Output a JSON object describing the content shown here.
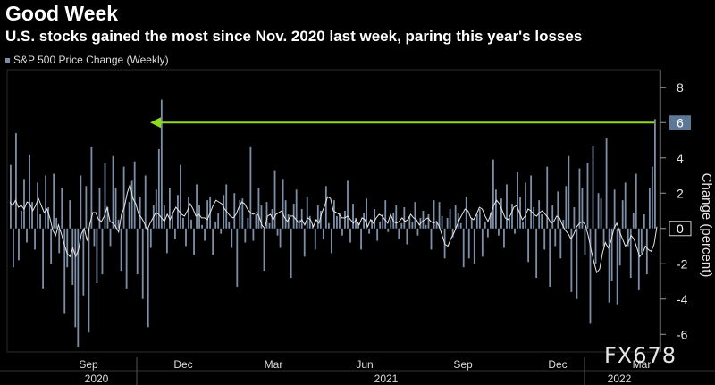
{
  "title": "Good Week",
  "subtitle": "U.S. stocks gained the most since Nov. 2020 last week, paring this year's losses",
  "watermark": "FX678",
  "chart_data": {
    "type": "bar",
    "legend": "S&P 500 Price Change (Weekly)",
    "ylabel": "Change (percent)",
    "ylim": [
      -7,
      9
    ],
    "yticks": [
      -6,
      -4,
      -2,
      0,
      2,
      4,
      6,
      8
    ],
    "last_value_label": "6",
    "zero_label": "0",
    "month_labels": [
      "Sep",
      "Dec",
      "Mar",
      "Jun",
      "Sep",
      "Dec",
      "Mar"
    ],
    "year_labels": [
      "2020",
      "2021",
      "2022"
    ],
    "colors": {
      "bar": "#7d8fa8",
      "avg_line": "#e8e8e8",
      "arrow": "#8fdc1e",
      "grid": "#2c2c2c"
    },
    "series": [
      {
        "name": "S&P 500 Price Change (Weekly)",
        "values": [
          3.6,
          -2.2,
          5.4,
          -1.8,
          1.0,
          2.8,
          -0.8,
          4.2,
          1.5,
          -1.2,
          2.6,
          0.8,
          -3.4,
          3.0,
          1.2,
          -2.0,
          3.1,
          0.6,
          -1.4,
          2.3,
          -4.8,
          -2.2,
          1.6,
          -3.2,
          -5.6,
          -6.7,
          3.0,
          -3.8,
          2.4,
          -5.9,
          4.6,
          -1.0,
          -3.1,
          2.3,
          -2.6,
          3.7,
          1.2,
          -1.0,
          4.1,
          2.3,
          0.5,
          -2.4,
          3.5,
          -3.4,
          1.5,
          2.7,
          3.8,
          -2.6,
          1.8,
          -4.0,
          3.0,
          -5.6,
          -1.1,
          1.3,
          2.2,
          4.5,
          7.3,
          1.3,
          -1.4,
          2.3,
          0.9,
          -0.6,
          1.9,
          3.6,
          0.6,
          -1.0,
          1.8,
          0.5,
          -1.5,
          2.5,
          1.3,
          0.2,
          -0.7,
          1.6,
          1.8,
          -1.5,
          0.4,
          0.9,
          -0.3,
          1.9,
          2.5,
          0.4,
          -1.1,
          2.0,
          -3.3,
          1.6,
          1.7,
          -0.8,
          0.6,
          4.6,
          -0.7,
          0.8,
          2.3,
          1.3,
          -2.4,
          1.5,
          0.3,
          1.1,
          3.3,
          -0.4,
          -1.1,
          2.8,
          1.6,
          0.8,
          -2.8,
          1.4,
          2.2,
          0.5,
          1.1,
          -1.6,
          1.8,
          0.7,
          0.2,
          -1.2,
          1.3,
          1.0,
          -0.6,
          2.4,
          0.3,
          -1.4,
          1.6,
          0.7,
          0.9,
          -0.4,
          1.0,
          2.7,
          -0.8,
          1.4,
          0.6,
          0.3,
          -1.2,
          0.9,
          1.7,
          -0.3,
          0.5,
          1.1,
          -0.7,
          0.4,
          0.8,
          1.6,
          -0.2,
          0.5,
          0.9,
          1.3,
          -0.6,
          0.3,
          1.2,
          -0.9,
          0.7,
          0.4,
          1.5,
          -0.4,
          0.6,
          1.0,
          0.2,
          0.8,
          -1.2,
          1.6,
          0.4,
          1.5,
          0.7,
          -1.7,
          0.6,
          1.1,
          -0.5,
          1.3,
          0.9,
          0.3,
          -2.2,
          1.8,
          -1.7,
          0.6,
          -2.0,
          0.8,
          1.1,
          -1.6,
          0.4,
          -0.5,
          0.9,
          3.9,
          2.2,
          -0.4,
          1.7,
          -1.1,
          2.5,
          0.6,
          1.4,
          -0.3,
          3.2,
          1.8,
          0.4,
          2.6,
          -1.9,
          3.0,
          1.2,
          -2.8,
          1.6,
          0.8,
          -1.2,
          3.5,
          -3.3,
          1.3,
          -1.0,
          2.1,
          -1.7,
          0.5,
          2.4,
          4.1,
          -3.6,
          1.2,
          -4.0,
          3.4,
          2.3,
          -1.5,
          3.7,
          -5.4,
          4.7,
          -2.0,
          2.0,
          1.7,
          -1.0,
          5.1,
          -4.2,
          -3.0,
          2.2,
          -4.3,
          -2.1,
          1.6,
          2.6,
          -1.0,
          -2.8,
          0.9,
          3.1,
          -3.5,
          -1.4,
          0.8,
          -2.6,
          2.3,
          3.5,
          6.2
        ]
      },
      {
        "name": "Moving Average",
        "values": [
          1.5,
          1.3,
          1.6,
          1.2,
          1.3,
          1.1,
          1.5,
          1.4,
          1.0,
          1.3,
          1.7,
          1.3,
          0.9,
          1.1,
          0.6,
          -0.1,
          -0.4,
          0.2,
          -0.3,
          -0.9,
          -1.4,
          -1.6,
          -1.1,
          -1.6,
          -1.2,
          -0.3,
          0.0,
          -0.7,
          0.3,
          0.9,
          0.9,
          0.5,
          0.4,
          0.7,
          1.2,
          0.4,
          0.3,
          0.1,
          -0.2,
          0.8,
          1.2,
          2.0,
          2.5,
          1.7,
          1.4,
          0.8,
          0.6,
          0.3,
          -0.1,
          0.3,
          0.6,
          0.9,
          0.8,
          0.6,
          0.4,
          0.8,
          0.5,
          0.9,
          1.2,
          1.0,
          0.8,
          0.7,
          1.0,
          1.4,
          1.1,
          0.7,
          0.8,
          0.6,
          0.6,
          0.5,
          0.9,
          1.3,
          1.6,
          1.5,
          1.4,
          1.1,
          0.9,
          0.7,
          0.6,
          0.8,
          1.2,
          1.5,
          1.4,
          1.1,
          0.9,
          0.8,
          0.9,
          0.7,
          0.2,
          0.0,
          0.7,
          0.8,
          0.5,
          0.8,
          0.9,
          1.0,
          0.6,
          0.4,
          0.7,
          0.7,
          0.5,
          0.3,
          0.5,
          0.2,
          0.6,
          0.5,
          0.1,
          0.5,
          0.3,
          0.9,
          1.3,
          1.8,
          1.7,
          1.0,
          0.9,
          0.8,
          0.6,
          0.6,
          0.7,
          0.5,
          0.3,
          0.5,
          0.2,
          0.6,
          0.5,
          0.1,
          0.5,
          0.3,
          0.6,
          0.8,
          0.7,
          0.5,
          0.3,
          0.8,
          0.4,
          0.3,
          0.4,
          0.6,
          0.4,
          0.5,
          0.8,
          0.6,
          0.5,
          0.2,
          0.4,
          0.5,
          0.6,
          0.4,
          0.3,
          0.4,
          0.1,
          -0.4,
          -0.9,
          -1.0,
          -0.6,
          -0.3,
          0.1,
          0.5,
          0.8,
          1.1,
          1.0,
          0.6,
          0.5,
          0.8,
          1.2,
          1.1,
          0.7,
          0.4,
          0.8,
          1.3,
          1.6,
          1.4,
          1.0,
          0.6,
          0.5,
          0.8,
          1.2,
          1.3,
          0.9,
          0.5,
          0.7,
          1.1,
          1.0,
          0.8,
          0.7,
          0.9,
          1.0,
          0.8,
          0.6,
          0.3,
          0.4,
          0.7,
          0.6,
          0.2,
          -0.1,
          -0.3,
          -0.6,
          -0.3,
          0.1,
          0.3,
          0.4,
          0.2,
          -0.4,
          -1.2,
          -1.9,
          -2.5,
          -2.3,
          -1.4,
          -0.8,
          -1.1,
          -0.7,
          0.0,
          0.3,
          -0.2,
          -0.6,
          -1.0,
          -0.8,
          -0.4,
          -0.6,
          -1.1,
          -1.6,
          -1.4,
          -1.0,
          -1.2,
          -1.3,
          -0.9,
          0.1
        ]
      }
    ]
  }
}
